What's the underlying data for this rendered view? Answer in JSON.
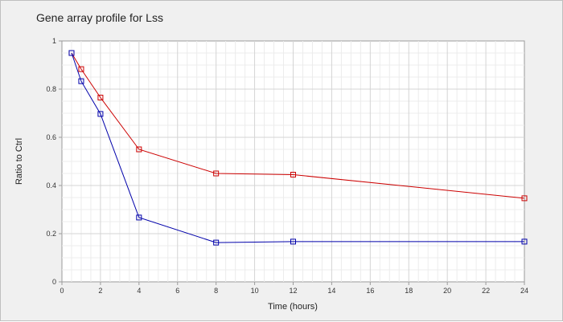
{
  "chart_data": {
    "type": "line",
    "title": "Gene array profile for Lss",
    "xlabel": "Time (hours)",
    "ylabel": "Ratio to Ctrl",
    "xlim": [
      0,
      24
    ],
    "ylim": [
      0,
      1
    ],
    "x_ticks": [
      "0",
      "2",
      "4",
      "6",
      "8",
      "10",
      "12",
      "14",
      "16",
      "18",
      "20",
      "22",
      "24"
    ],
    "y_ticks": [
      "0",
      "0.2",
      "0.4",
      "0.6",
      "0.8",
      "1"
    ],
    "grid": true,
    "legend": "none",
    "series": [
      {
        "color": "#cc0000",
        "marker": "square",
        "x": [
          0.5,
          1,
          2,
          4,
          8,
          12,
          24
        ],
        "y": [
          0.95,
          0.883,
          0.765,
          0.55,
          0.45,
          0.445,
          0.347
        ]
      },
      {
        "color": "#0000aa",
        "marker": "square",
        "x": [
          0.5,
          1,
          2,
          4,
          8,
          12,
          24
        ],
        "y": [
          0.95,
          0.833,
          0.697,
          0.267,
          0.163,
          0.167,
          0.167
        ]
      }
    ]
  },
  "colors": {
    "plot_background": "#ffffff",
    "frame_background": "#f0f0f0",
    "major_grid": "#d4d4d4",
    "minor_grid": "#ececec",
    "axis": "#9a9a9a"
  }
}
